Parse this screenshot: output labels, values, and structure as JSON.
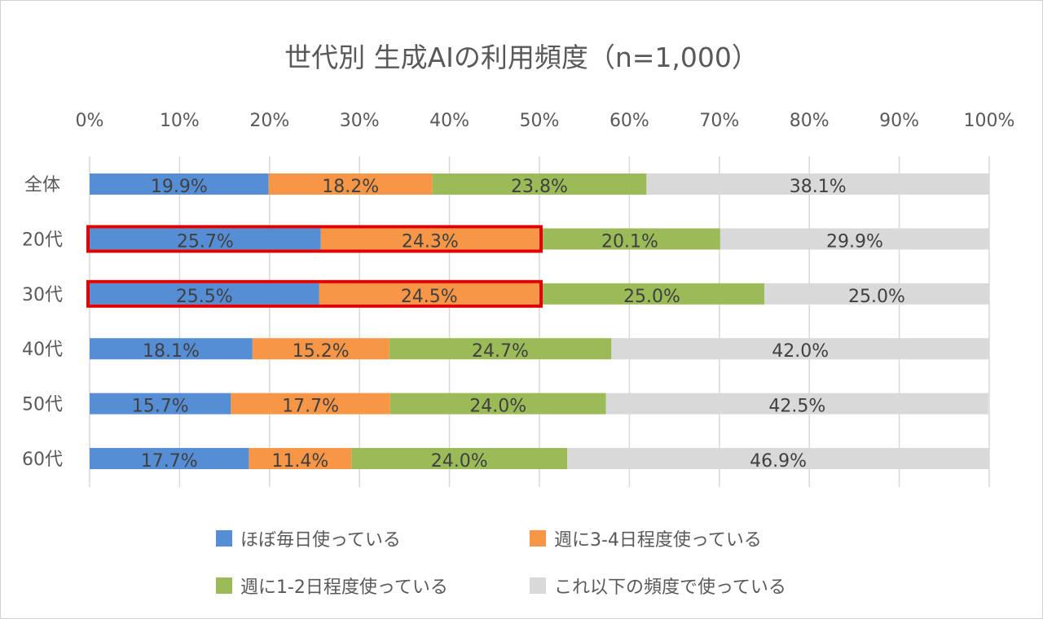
{
  "chart_data": {
    "type": "bar",
    "orientation": "horizontal",
    "stacked": "percent",
    "title": "世代別 生成AIの利用頻度（n=1,000）",
    "categories": [
      "全体",
      "20代",
      "30代",
      "40代",
      "50代",
      "60代"
    ],
    "xlim": [
      0,
      100
    ],
    "xticks": [
      "0%",
      "10%",
      "20%",
      "30%",
      "40%",
      "50%",
      "60%",
      "70%",
      "80%",
      "90%",
      "100%"
    ],
    "grid": "vertical",
    "legend_position": "bottom",
    "series": [
      {
        "name": "ほぼ毎日使っている",
        "color": "#558ED5",
        "values": [
          19.9,
          25.7,
          25.5,
          18.1,
          15.7,
          17.7
        ],
        "labels": [
          "19.9%",
          "25.7%",
          "25.5%",
          "18.1%",
          "15.7%",
          "17.7%"
        ]
      },
      {
        "name": "週に3-4日程度使っている",
        "color": "#F79646",
        "values": [
          18.2,
          24.3,
          24.5,
          15.2,
          17.7,
          11.4
        ],
        "labels": [
          "18.2%",
          "24.3%",
          "24.5%",
          "15.2%",
          "17.7%",
          "11.4%"
        ]
      },
      {
        "name": "週に1-2日程度使っている",
        "color": "#9BBB59",
        "values": [
          23.8,
          20.1,
          25.0,
          24.7,
          24.0,
          24.0
        ],
        "labels": [
          "23.8%",
          "20.1%",
          "25.0%",
          "24.7%",
          "24.0%",
          "24.0%"
        ]
      },
      {
        "name": "これ以下の頻度で使っている",
        "color": "#D9D9D9",
        "values": [
          38.1,
          29.9,
          25.0,
          42.0,
          42.5,
          46.9
        ],
        "labels": [
          "38.1%",
          "29.9%",
          "25.0%",
          "42.0%",
          "42.5%",
          "46.9%"
        ]
      }
    ],
    "highlights": [
      {
        "category": "20代",
        "series": [
          "ほぼ毎日使っている",
          "週に3-4日程度使っている"
        ],
        "color": "#E00000"
      },
      {
        "category": "30代",
        "series": [
          "ほぼ毎日使っている",
          "週に3-4日程度使っている"
        ],
        "color": "#E00000"
      }
    ]
  }
}
